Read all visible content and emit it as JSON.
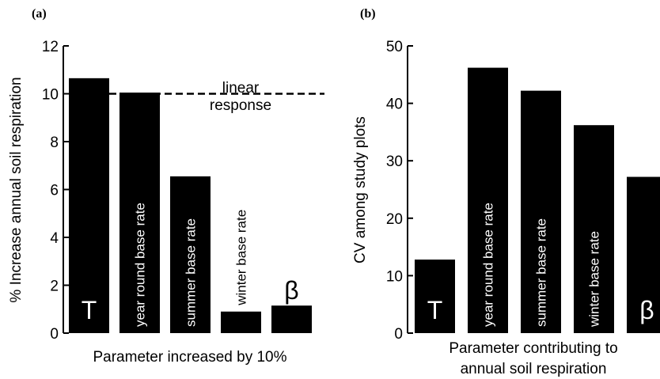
{
  "chart_data": [
    {
      "type": "bar",
      "panel_label": "(a)",
      "categories": [
        "T",
        "year round base rate",
        "summer base rate",
        "winter base rate",
        "β"
      ],
      "values": [
        10.65,
        10.05,
        6.55,
        0.9,
        1.15
      ],
      "xlabel": "Parameter increased by 10%",
      "ylabel": "% Increase annual soil respiration",
      "ylim": [
        0,
        12
      ],
      "yticks": [
        0,
        2,
        4,
        6,
        8,
        10,
        12
      ],
      "reference_line": {
        "y": 10,
        "style": "dashed",
        "label_lines": [
          "linear",
          "response"
        ]
      },
      "grid": false,
      "legend": "none"
    },
    {
      "type": "bar",
      "panel_label": "(b)",
      "categories": [
        "T",
        "year round base rate",
        "summer base rate",
        "winter base rate",
        "β"
      ],
      "values": [
        12.8,
        46.2,
        42.2,
        36.2,
        27.2
      ],
      "xlabel_lines": [
        "Parameter contributing to",
        "annual soil respiration"
      ],
      "ylabel": "CV among study plots",
      "ylim": [
        0,
        50
      ],
      "yticks": [
        0,
        10,
        20,
        30,
        40,
        50
      ],
      "grid": false,
      "legend": "none"
    }
  ],
  "colors": {
    "bar": "#000000",
    "bar_label": "#ffffff",
    "axis": "#000000"
  }
}
